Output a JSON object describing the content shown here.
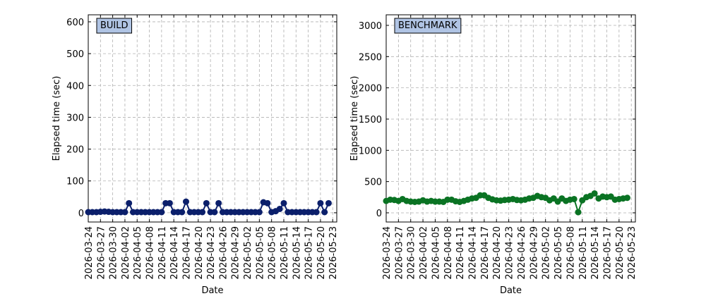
{
  "chart_data": [
    {
      "type": "line",
      "title": "BUILD",
      "x_label": "Date",
      "y_label": "Elapsed time (sec)",
      "x": [
        "2026-03-24",
        "2026-03-25",
        "2026-03-26",
        "2026-03-27",
        "2026-03-28",
        "2026-03-29",
        "2026-03-30",
        "2026-03-31",
        "2026-04-01",
        "2026-04-02",
        "2026-04-03",
        "2026-04-04",
        "2026-04-05",
        "2026-04-06",
        "2026-04-07",
        "2026-04-08",
        "2026-04-09",
        "2026-04-10",
        "2026-04-11",
        "2026-04-12",
        "2026-04-13",
        "2026-04-14",
        "2026-04-15",
        "2026-04-16",
        "2026-04-17",
        "2026-04-18",
        "2026-04-19",
        "2026-04-20",
        "2026-04-21",
        "2026-04-22",
        "2026-04-23",
        "2026-04-24",
        "2026-04-25",
        "2026-04-26",
        "2026-04-27",
        "2026-04-28",
        "2026-04-29",
        "2026-04-30",
        "2026-05-01",
        "2026-05-02",
        "2026-05-03",
        "2026-05-04",
        "2026-05-05",
        "2026-05-06",
        "2026-05-07",
        "2026-05-08",
        "2026-05-09",
        "2026-05-10",
        "2026-05-11",
        "2026-05-12",
        "2026-05-13",
        "2026-05-14",
        "2026-05-15",
        "2026-05-16",
        "2026-05-17",
        "2026-05-18",
        "2026-05-19",
        "2026-05-20",
        "2026-05-21",
        "2026-05-22"
      ],
      "series": [
        {
          "color": "#0b1f6b",
          "values": [
            2,
            2,
            2,
            3,
            4,
            3,
            2,
            2,
            2,
            2,
            30,
            2,
            2,
            2,
            2,
            2,
            2,
            2,
            2,
            30,
            30,
            2,
            2,
            2,
            35,
            2,
            2,
            2,
            2,
            30,
            2,
            2,
            30,
            2,
            2,
            2,
            2,
            2,
            2,
            2,
            2,
            2,
            2,
            33,
            30,
            2,
            5,
            12,
            30,
            2,
            2,
            2,
            2,
            2,
            2,
            2,
            2,
            30,
            2,
            30
          ]
        }
      ],
      "xlim": [
        "2026-03-24",
        "2026-05-24"
      ],
      "xticks": [
        "2026-03-24",
        "2026-03-27",
        "2026-03-30",
        "2026-04-02",
        "2026-04-05",
        "2026-04-08",
        "2026-04-11",
        "2026-04-14",
        "2026-04-17",
        "2026-04-20",
        "2026-04-23",
        "2026-04-26",
        "2026-04-29",
        "2026-05-02",
        "2026-05-05",
        "2026-05-08",
        "2026-05-11",
        "2026-05-14",
        "2026-05-17",
        "2026-05-20",
        "2026-05-23"
      ],
      "ylim": [
        -29,
        622
      ],
      "yticks": [
        0,
        100,
        200,
        300,
        400,
        500,
        600
      ],
      "grid": true
    },
    {
      "type": "line",
      "title": "BENCHMARK",
      "x_label": "Date",
      "y_label": "Elapsed time (sec)",
      "x": [
        "2026-03-24",
        "2026-03-25",
        "2026-03-26",
        "2026-03-27",
        "2026-03-28",
        "2026-03-29",
        "2026-03-30",
        "2026-03-31",
        "2026-04-01",
        "2026-04-02",
        "2026-04-03",
        "2026-04-04",
        "2026-04-05",
        "2026-04-06",
        "2026-04-07",
        "2026-04-08",
        "2026-04-09",
        "2026-04-10",
        "2026-04-11",
        "2026-04-12",
        "2026-04-13",
        "2026-04-14",
        "2026-04-15",
        "2026-04-16",
        "2026-04-17",
        "2026-04-18",
        "2026-04-19",
        "2026-04-20",
        "2026-04-21",
        "2026-04-22",
        "2026-04-23",
        "2026-04-24",
        "2026-04-25",
        "2026-04-26",
        "2026-04-27",
        "2026-04-28",
        "2026-04-29",
        "2026-04-30",
        "2026-05-01",
        "2026-05-02",
        "2026-05-03",
        "2026-05-04",
        "2026-05-05",
        "2026-05-06",
        "2026-05-07",
        "2026-05-08",
        "2026-05-09",
        "2026-05-10",
        "2026-05-11",
        "2026-05-12",
        "2026-05-13",
        "2026-05-14",
        "2026-05-15",
        "2026-05-16",
        "2026-05-17",
        "2026-05-18",
        "2026-05-19",
        "2026-05-20",
        "2026-05-21",
        "2026-05-22"
      ],
      "series": [
        {
          "color": "#0a7323",
          "values": [
            190,
            210,
            205,
            190,
            220,
            190,
            180,
            175,
            180,
            200,
            180,
            190,
            180,
            180,
            175,
            210,
            210,
            185,
            175,
            190,
            210,
            230,
            240,
            280,
            280,
            240,
            215,
            200,
            195,
            205,
            210,
            220,
            205,
            200,
            210,
            230,
            240,
            270,
            250,
            240,
            200,
            230,
            180,
            230,
            190,
            210,
            220,
            10,
            200,
            250,
            270,
            310,
            230,
            260,
            250,
            260,
            210,
            220,
            230,
            240
          ]
        }
      ],
      "xlim": [
        "2026-03-24",
        "2026-05-24"
      ],
      "xticks": [
        "2026-03-24",
        "2026-03-27",
        "2026-03-30",
        "2026-04-02",
        "2026-04-05",
        "2026-04-08",
        "2026-04-11",
        "2026-04-14",
        "2026-04-17",
        "2026-04-20",
        "2026-04-23",
        "2026-04-26",
        "2026-04-29",
        "2026-05-02",
        "2026-05-05",
        "2026-05-08",
        "2026-05-11",
        "2026-05-14",
        "2026-05-17",
        "2026-05-20",
        "2026-05-23"
      ],
      "ylim": [
        -147,
        3169
      ],
      "yticks": [
        0,
        500,
        1000,
        1500,
        2000,
        2500,
        3000
      ],
      "grid": true
    }
  ]
}
